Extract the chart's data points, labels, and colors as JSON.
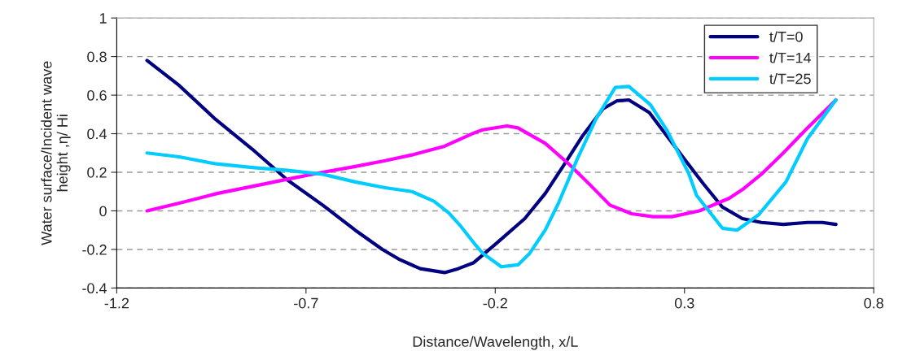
{
  "chart_data": {
    "type": "line",
    "xlabel": "Distance/Wavelength, x/L",
    "ylabel": "Water surface/Incident wave\nheight ,η/ Hi",
    "xlim": [
      -1.2,
      0.8
    ],
    "xticks": [
      -1.2,
      -0.7,
      -0.2,
      0.3,
      0.8
    ],
    "ylim": [
      -0.4,
      1
    ],
    "yticks": [
      -0.4,
      -0.2,
      0,
      0.2,
      0.4,
      0.6,
      0.8,
      1
    ],
    "grid": "y",
    "legend": "top right",
    "line_style": "solid",
    "marker": "none",
    "series": [
      {
        "name": "t/T=0",
        "color": "#000080",
        "x": [
          -1.12,
          -1.035,
          -0.942,
          -0.842,
          -0.749,
          -0.656,
          -0.57,
          -0.498,
          -0.455,
          -0.398,
          -0.334,
          -0.298,
          -0.258,
          -0.198,
          -0.122,
          -0.068,
          -0.018,
          0.031,
          0.085,
          0.121,
          0.153,
          0.207,
          0.253,
          0.303,
          0.35,
          0.4,
          0.453,
          0.503,
          0.561,
          0.625,
          0.664,
          0.7
        ],
        "values": [
          0.78,
          0.65,
          0.48,
          0.32,
          0.16,
          0.03,
          -0.1,
          -0.2,
          -0.25,
          -0.3,
          -0.32,
          -0.3,
          -0.27,
          -0.17,
          -0.04,
          0.09,
          0.24,
          0.39,
          0.53,
          0.57,
          0.575,
          0.51,
          0.39,
          0.26,
          0.14,
          0.02,
          -0.04,
          -0.06,
          -0.07,
          -0.06,
          -0.06,
          -0.07
        ]
      },
      {
        "name": "t/T=14",
        "color": "#ff00ff",
        "x": [
          -1.12,
          -1.035,
          -0.935,
          -0.834,
          -0.734,
          -0.656,
          -0.57,
          -0.491,
          -0.42,
          -0.334,
          -0.255,
          -0.233,
          -0.169,
          -0.14,
          -0.068,
          -0.004,
          0.053,
          0.103,
          0.16,
          0.217,
          0.267,
          0.339,
          0.418,
          0.453,
          0.503,
          0.561,
          0.625,
          0.7
        ],
        "values": [
          0,
          0.04,
          0.09,
          0.13,
          0.17,
          0.2,
          0.23,
          0.26,
          0.29,
          0.335,
          0.405,
          0.42,
          0.44,
          0.43,
          0.35,
          0.24,
          0.13,
          0.03,
          -0.015,
          -0.03,
          -0.03,
          0.0,
          0.065,
          0.11,
          0.19,
          0.3,
          0.43,
          0.575
        ]
      },
      {
        "name": "t/T=25",
        "color": "#00ccff",
        "x": [
          -1.12,
          -1.035,
          -0.942,
          -0.842,
          -0.749,
          -0.656,
          -0.57,
          -0.491,
          -0.42,
          -0.362,
          -0.323,
          -0.291,
          -0.255,
          -0.233,
          -0.184,
          -0.14,
          -0.109,
          -0.068,
          -0.033,
          0.017,
          0.067,
          0.117,
          0.153,
          0.21,
          0.253,
          0.311,
          0.332,
          0.4,
          0.439,
          0.496,
          0.568,
          0.625,
          0.7
        ],
        "values": [
          0.3,
          0.28,
          0.245,
          0.225,
          0.21,
          0.19,
          0.15,
          0.12,
          0.1,
          0.05,
          -0.01,
          -0.08,
          -0.17,
          -0.22,
          -0.29,
          -0.28,
          -0.22,
          -0.1,
          0.04,
          0.27,
          0.48,
          0.64,
          0.645,
          0.55,
          0.42,
          0.195,
          0.08,
          -0.09,
          -0.1,
          -0.02,
          0.15,
          0.375,
          0.575
        ]
      }
    ]
  }
}
